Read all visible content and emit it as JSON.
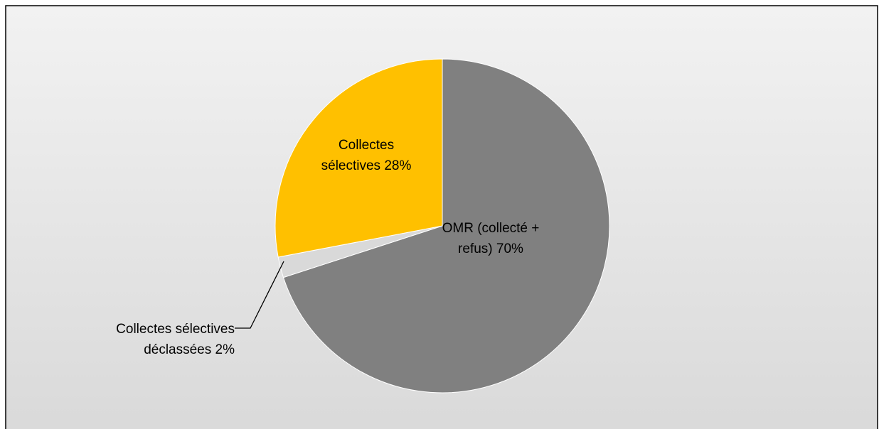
{
  "chart_data": {
    "type": "pie",
    "categories": [
      "OMR (collecté + refus)",
      "Collectes sélectives déclassées",
      "Collectes sélectives"
    ],
    "values": [
      70,
      2,
      28
    ],
    "value_labels": [
      "70%",
      "2%",
      "28%"
    ],
    "colors": [
      "#808080",
      "#d9d9d9",
      "#ffc000"
    ]
  }
}
